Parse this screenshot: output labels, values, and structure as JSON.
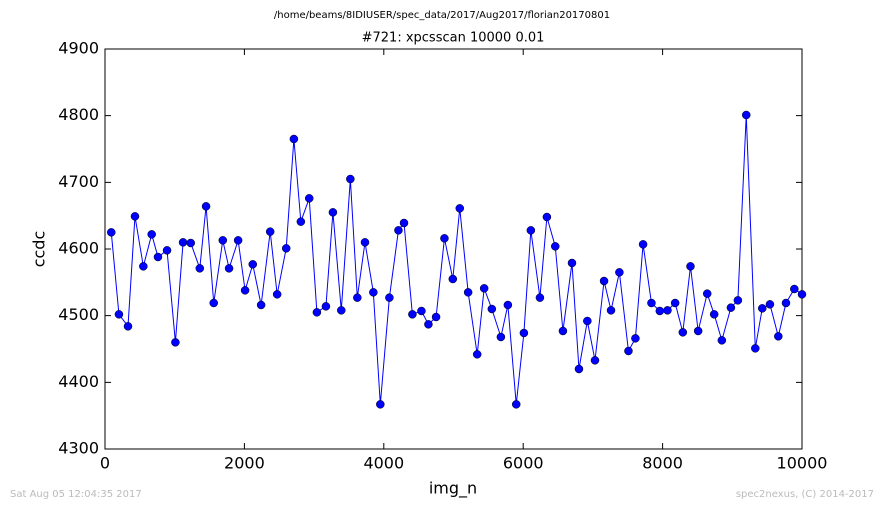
{
  "chart_data": {
    "type": "line",
    "suptitle": "/home/beams/8IDIUSER/spec_data/2017/Aug2017/florian20170801",
    "title": "#721: xpcsscan 10000 0.01",
    "xlabel": "img_n",
    "ylabel": "ccdc",
    "footer_left": "Sat Aug 05 12:04:35 2017",
    "footer_right": "spec2nexus, (C) 2014-2017",
    "x": [
      90,
      200,
      330,
      430,
      550,
      670,
      760,
      890,
      1010,
      1120,
      1230,
      1360,
      1450,
      1560,
      1690,
      1780,
      1910,
      2010,
      2120,
      2240,
      2370,
      2470,
      2600,
      2710,
      2810,
      2930,
      3040,
      3170,
      3270,
      3390,
      3520,
      3620,
      3730,
      3850,
      3950,
      4080,
      4210,
      4290,
      4410,
      4540,
      4640,
      4750,
      4870,
      4990,
      5090,
      5210,
      5340,
      5440,
      5550,
      5680,
      5780,
      5900,
      6010,
      6110,
      6240,
      6340,
      6460,
      6570,
      6700,
      6800,
      6920,
      7030,
      7160,
      7260,
      7380,
      7510,
      7610,
      7720,
      7840,
      7960,
      8070,
      8180,
      8290,
      8400,
      8510,
      8640,
      8740,
      8850,
      8980,
      9080,
      9200,
      9330,
      9430,
      9540,
      9660,
      9770,
      9890,
      10000
    ],
    "series": [
      {
        "name": "ccdc",
        "color": "#0000ff",
        "values": [
          4625,
          4502,
          4484,
          4649,
          4574,
          4622,
          4588,
          4598,
          4460,
          4610,
          4609,
          4571,
          4664,
          4519,
          4613,
          4571,
          4613,
          4538,
          4577,
          4516,
          4626,
          4532,
          4601,
          4765,
          4641,
          4676,
          4505,
          4514,
          4655,
          4508,
          4705,
          4527,
          4610,
          4535,
          4367,
          4527,
          4628,
          4639,
          4502,
          4507,
          4487,
          4498,
          4616,
          4555,
          4661,
          4535,
          4442,
          4541,
          4510,
          4468,
          4516,
          4367,
          4474,
          4628,
          4527,
          4648,
          4604,
          4477,
          4579,
          4420,
          4492,
          4433,
          4552,
          4508,
          4565,
          4447,
          4466,
          4607,
          4519,
          4507,
          4508,
          4519,
          4475,
          4574,
          4477,
          4533,
          4502,
          4463,
          4512,
          4523,
          4801,
          4451,
          4511,
          4517,
          4469,
          4519,
          4540,
          4532
        ]
      }
    ],
    "xlim": [
      0,
      10000
    ],
    "xticks": [
      0,
      2000,
      4000,
      6000,
      8000,
      10000
    ],
    "ylim": [
      4300,
      4900
    ],
    "yticks": [
      4300,
      4400,
      4500,
      4600,
      4700,
      4800,
      4900
    ]
  }
}
